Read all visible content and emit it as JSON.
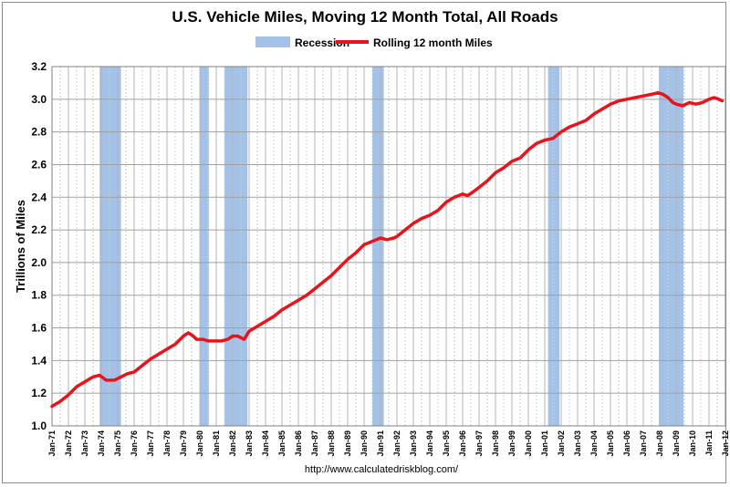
{
  "chart_data": {
    "type": "line",
    "title": "U.S. Vehicle Miles, Moving 12 Month Total, All Roads",
    "ylabel": "Trillions of Miles",
    "xlabel": "",
    "ylim": [
      1.0,
      3.2
    ],
    "yticks": [
      "1.0",
      "1.2",
      "1.4",
      "1.6",
      "1.8",
      "2.0",
      "2.2",
      "2.4",
      "2.6",
      "2.8",
      "3.0",
      "3.2"
    ],
    "xlim": [
      1971,
      2012
    ],
    "xticks": [
      "Jan-71",
      "Jan-72",
      "Jan-73",
      "Jan-74",
      "Jan-75",
      "Jan-76",
      "Jan-77",
      "Jan-78",
      "Jan-79",
      "Jan-80",
      "Jan-81",
      "Jan-82",
      "Jan-83",
      "Jan-84",
      "Jan-85",
      "Jan-86",
      "Jan-87",
      "Jan-88",
      "Jan-89",
      "Jan-90",
      "Jan-91",
      "Jan-92",
      "Jan-93",
      "Jan-94",
      "Jan-95",
      "Jan-96",
      "Jan-97",
      "Jan-98",
      "Jan-99",
      "Jan-00",
      "Jan-01",
      "Jan-02",
      "Jan-03",
      "Jan-04",
      "Jan-05",
      "Jan-06",
      "Jan-07",
      "Jan-08",
      "Jan-09",
      "Jan-10",
      "Jan-11",
      "Jan-12"
    ],
    "grid": true,
    "legend": {
      "placement": "top-center",
      "entries": [
        {
          "name": "Recession",
          "color": "#a4c2e8"
        },
        {
          "name": "Rolling 12 month Miles",
          "color": "#e8141c"
        }
      ]
    },
    "recessions": [
      [
        1973.9,
        1975.2
      ],
      [
        1980.0,
        1980.55
      ],
      [
        1981.5,
        1982.9
      ],
      [
        1990.5,
        1991.2
      ],
      [
        2001.2,
        2001.9
      ],
      [
        2007.95,
        2009.45
      ]
    ],
    "series": [
      {
        "name": "Rolling 12 month Miles",
        "color": "#e8141c",
        "x": [
          1971.0,
          1971.5,
          1972.0,
          1972.5,
          1973.0,
          1973.5,
          1973.9,
          1974.3,
          1974.8,
          1975.2,
          1975.6,
          1976.0,
          1976.5,
          1977.0,
          1977.5,
          1978.0,
          1978.5,
          1979.0,
          1979.3,
          1979.6,
          1979.8,
          1980.2,
          1980.5,
          1980.9,
          1981.3,
          1981.7,
          1982.0,
          1982.3,
          1982.7,
          1983.0,
          1983.5,
          1984.0,
          1984.5,
          1985.0,
          1985.5,
          1986.0,
          1986.5,
          1987.0,
          1987.5,
          1988.0,
          1988.5,
          1989.0,
          1989.5,
          1990.0,
          1990.5,
          1991.0,
          1991.4,
          1991.8,
          1992.0,
          1992.5,
          1993.0,
          1993.5,
          1994.0,
          1994.5,
          1995.0,
          1995.5,
          1996.0,
          1996.3,
          1996.6,
          1997.0,
          1997.5,
          1998.0,
          1998.5,
          1999.0,
          1999.5,
          2000.0,
          2000.5,
          2001.0,
          2001.5,
          2002.0,
          2002.5,
          2003.0,
          2003.5,
          2004.0,
          2004.5,
          2005.0,
          2005.5,
          2006.0,
          2006.5,
          2007.0,
          2007.5,
          2007.9,
          2008.2,
          2008.5,
          2008.8,
          2009.0,
          2009.4,
          2009.8,
          2010.2,
          2010.6,
          2011.0,
          2011.3,
          2011.6,
          2011.8
        ],
        "values": [
          1.12,
          1.15,
          1.19,
          1.24,
          1.27,
          1.3,
          1.31,
          1.28,
          1.28,
          1.3,
          1.32,
          1.33,
          1.37,
          1.41,
          1.44,
          1.47,
          1.5,
          1.55,
          1.57,
          1.55,
          1.53,
          1.53,
          1.52,
          1.52,
          1.52,
          1.53,
          1.55,
          1.55,
          1.53,
          1.58,
          1.61,
          1.64,
          1.67,
          1.71,
          1.74,
          1.77,
          1.8,
          1.84,
          1.88,
          1.92,
          1.97,
          2.02,
          2.06,
          2.11,
          2.13,
          2.15,
          2.14,
          2.15,
          2.16,
          2.2,
          2.24,
          2.27,
          2.29,
          2.32,
          2.37,
          2.4,
          2.42,
          2.41,
          2.43,
          2.46,
          2.5,
          2.55,
          2.58,
          2.62,
          2.64,
          2.69,
          2.73,
          2.75,
          2.76,
          2.8,
          2.83,
          2.85,
          2.87,
          2.91,
          2.94,
          2.97,
          2.99,
          3.0,
          3.01,
          3.02,
          3.03,
          3.04,
          3.03,
          3.01,
          2.98,
          2.97,
          2.96,
          2.98,
          2.97,
          2.98,
          3.0,
          3.01,
          3.0,
          2.99
        ]
      }
    ],
    "source": "http://www.calculatedriskblog.com/"
  }
}
